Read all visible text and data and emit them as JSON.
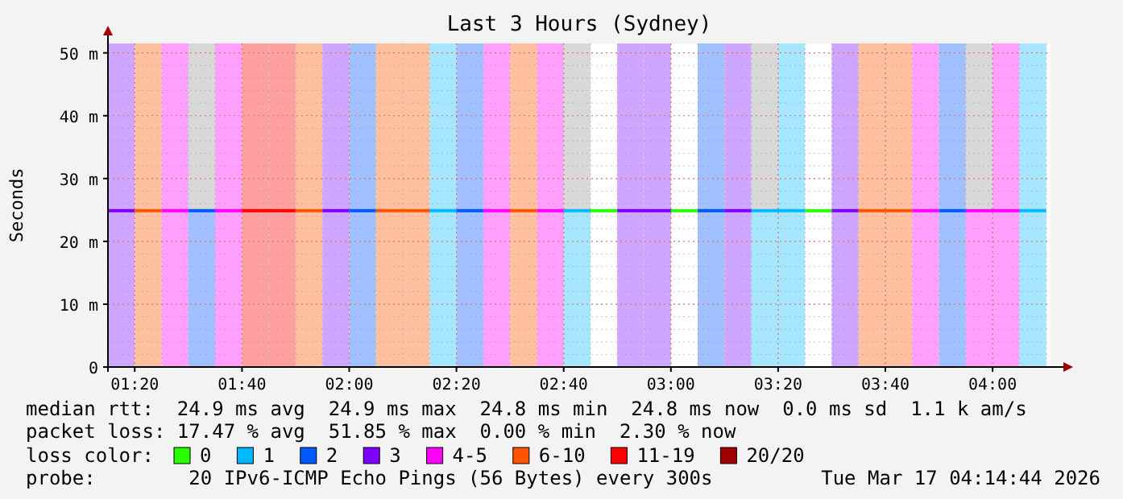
{
  "chart_data": {
    "type": "bar",
    "title": "Last 3 Hours (Sydney)",
    "ylabel": "Seconds",
    "legend_title": "loss color:",
    "legend": "bottom",
    "grid": true,
    "xlim": [
      1.25,
      4.18
    ],
    "ylim": [
      0,
      51.5
    ],
    "xticks": [
      {
        "value": 1.3333,
        "label": "01:20"
      },
      {
        "value": 1.6667,
        "label": "01:40"
      },
      {
        "value": 2,
        "label": "02:00"
      },
      {
        "value": 2.3333,
        "label": "02:20"
      },
      {
        "value": 2.6667,
        "label": "02:40"
      },
      {
        "value": 3,
        "label": "03:00"
      },
      {
        "value": 3.3333,
        "label": "03:20"
      },
      {
        "value": 3.6667,
        "label": "03:40"
      },
      {
        "value": 4,
        "label": "04:00"
      }
    ],
    "yticks": [
      0,
      {
        "value": 10,
        "label": "10 m"
      },
      {
        "value": 20,
        "label": "20 m"
      },
      {
        "value": 30,
        "label": "30 m"
      },
      {
        "value": 40,
        "label": "40 m"
      },
      {
        "value": 50,
        "label": "50 m"
      }
    ],
    "bands": [
      {
        "axis": "x",
        "from": 1.25,
        "to": 1.3333,
        "color": "#cfa6ff"
      },
      {
        "axis": "x",
        "from": 1.3333,
        "to": 1.4167,
        "color": "#ffc0a0"
      },
      {
        "axis": "x",
        "from": 1.4167,
        "to": 1.5,
        "color": "#ffa0ff"
      },
      {
        "axis": "x",
        "from": 1.5,
        "to": 1.5833,
        "color": "#a0c0ff"
      },
      {
        "axis": "x",
        "from": 1.5833,
        "to": 1.6667,
        "color": "#ffa0ff"
      },
      {
        "axis": "x",
        "from": 1.6667,
        "to": 1.75,
        "color": "#ffa0a0"
      },
      {
        "axis": "x",
        "from": 1.75,
        "to": 1.8333,
        "color": "#ffa0a0"
      },
      {
        "axis": "x",
        "from": 1.8333,
        "to": 1.9167,
        "color": "#ffc0a0"
      },
      {
        "axis": "x",
        "from": 1.9167,
        "to": 2,
        "color": "#cfa6ff"
      },
      {
        "axis": "x",
        "from": 2,
        "to": 2.0833,
        "color": "#a0c0ff"
      },
      {
        "axis": "x",
        "from": 2.0833,
        "to": 2.1667,
        "color": "#ffc0a0"
      },
      {
        "axis": "x",
        "from": 2.1667,
        "to": 2.25,
        "color": "#ffc0a0"
      },
      {
        "axis": "x",
        "from": 2.25,
        "to": 2.3333,
        "color": "#a6e6ff"
      },
      {
        "axis": "x",
        "from": 2.3333,
        "to": 2.4167,
        "color": "#a0c0ff"
      },
      {
        "axis": "x",
        "from": 2.4167,
        "to": 2.5,
        "color": "#ffa0ff"
      },
      {
        "axis": "x",
        "from": 2.5,
        "to": 2.5833,
        "color": "#ffc0a0"
      },
      {
        "axis": "x",
        "from": 2.5833,
        "to": 2.6667,
        "color": "#ffa0ff"
      },
      {
        "axis": "x",
        "from": 2.6667,
        "to": 2.75,
        "color": "#a6e6ff"
      },
      {
        "axis": "x",
        "from": 2.8333,
        "to": 2.9167,
        "color": "#cfa6ff"
      },
      {
        "axis": "x",
        "from": 2.9167,
        "to": 3,
        "color": "#cfa6ff"
      },
      {
        "axis": "x",
        "from": 3.0833,
        "to": 3.1667,
        "color": "#a0c0ff"
      },
      {
        "axis": "x",
        "from": 3.1667,
        "to": 3.25,
        "color": "#cfa6ff"
      },
      {
        "axis": "x",
        "from": 3.25,
        "to": 3.3333,
        "color": "#a6e6ff"
      },
      {
        "axis": "x",
        "from": 3.3333,
        "to": 3.4167,
        "color": "#a6e6ff"
      },
      {
        "axis": "x",
        "from": 3.5,
        "to": 3.5833,
        "color": "#cfa6ff"
      },
      {
        "axis": "x",
        "from": 3.5833,
        "to": 3.6667,
        "color": "#ffc0a0"
      },
      {
        "axis": "x",
        "from": 3.6667,
        "to": 3.75,
        "color": "#ffc0a0"
      },
      {
        "axis": "x",
        "from": 3.75,
        "to": 3.8333,
        "color": "#ffa0ff"
      },
      {
        "axis": "x",
        "from": 3.8333,
        "to": 3.9167,
        "color": "#a0c0ff"
      },
      {
        "axis": "x",
        "from": 3.9167,
        "to": 4,
        "color": "#ffa0ff"
      },
      {
        "axis": "x",
        "from": 4,
        "to": 4.0833,
        "color": "#ffa0ff"
      },
      {
        "axis": "x",
        "from": 4.0833,
        "to": 4.1667,
        "color": "#a6e6ff"
      }
    ],
    "series": [
      {
        "name": "0",
        "type": "line",
        "color": "#26ff00",
        "x": [
          2.75,
          2.8333
        ],
        "values": [
          24.9,
          24.9
        ]
      },
      {
        "name": "1",
        "type": "line",
        "color": "#00b8ff",
        "x": [
          2.25,
          2.3333
        ],
        "values": [
          24.9,
          24.9
        ]
      },
      {
        "name": "2",
        "type": "line",
        "color": "#0059ff",
        "x": [
          1.5,
          1.5833
        ],
        "values": [
          24.9,
          24.9
        ]
      },
      {
        "name": "3",
        "type": "line",
        "color": "#7e00ff",
        "x": [
          1.25,
          1.3333
        ],
        "values": [
          24.9,
          24.9
        ]
      },
      {
        "name": "4-5",
        "type": "line",
        "color": "#ff00ff",
        "x": [
          1.4167,
          1.5
        ],
        "values": [
          24.9,
          24.9
        ]
      },
      {
        "name": "6-10",
        "type": "line",
        "color": "#ff5500",
        "x": [
          1.3333,
          1.4167
        ],
        "values": [
          24.9,
          24.9
        ]
      },
      {
        "name": "11-19",
        "type": "line",
        "color": "#ff0000",
        "x": [
          1.6667,
          1.8333
        ],
        "values": [
          24.9,
          24.9
        ]
      },
      {
        "name": "20/20",
        "type": "line",
        "color": "#a10000"
      },
      {
        "type": "line",
        "color": "#26ff00",
        "x": [
          3,
          3.0833
        ],
        "values": [
          24.9,
          24.9
        ]
      },
      {
        "type": "line",
        "color": "#26ff00",
        "x": [
          3.4167,
          3.5
        ],
        "values": [
          24.9,
          24.9
        ]
      },
      {
        "type": "line",
        "color": "#00b8ff",
        "x": [
          2.6667,
          2.75
        ],
        "values": [
          24.9,
          24.9
        ]
      },
      {
        "type": "line",
        "color": "#00b8ff",
        "x": [
          3.25,
          3.4167
        ],
        "values": [
          24.9,
          24.9
        ]
      },
      {
        "type": "line",
        "color": "#00b8ff",
        "x": [
          4.0833,
          4.1667
        ],
        "values": [
          24.9,
          24.9
        ]
      },
      {
        "type": "line",
        "color": "#0059ff",
        "x": [
          2,
          2.0833
        ],
        "values": [
          24.9,
          24.9
        ]
      },
      {
        "type": "line",
        "color": "#0059ff",
        "x": [
          2.3333,
          2.4167
        ],
        "values": [
          24.9,
          24.9
        ]
      },
      {
        "type": "line",
        "color": "#0059ff",
        "x": [
          3.0833,
          3.1667
        ],
        "values": [
          24.9,
          24.9
        ]
      },
      {
        "type": "line",
        "color": "#0059ff",
        "x": [
          3.8333,
          3.9167
        ],
        "values": [
          24.9,
          24.9
        ]
      },
      {
        "type": "line",
        "color": "#7e00ff",
        "x": [
          1.9167,
          2
        ],
        "values": [
          24.9,
          24.9
        ]
      },
      {
        "type": "line",
        "color": "#7e00ff",
        "x": [
          2.8333,
          3
        ],
        "values": [
          24.9,
          24.9
        ]
      },
      {
        "type": "line",
        "color": "#7e00ff",
        "x": [
          3.1667,
          3.25
        ],
        "values": [
          24.9,
          24.9
        ]
      },
      {
        "type": "line",
        "color": "#7e00ff",
        "x": [
          3.5,
          3.5833
        ],
        "values": [
          24.9,
          24.9
        ]
      },
      {
        "type": "line",
        "color": "#ff00ff",
        "x": [
          1.5833,
          1.6667
        ],
        "values": [
          24.9,
          24.9
        ]
      },
      {
        "type": "line",
        "color": "#ff00ff",
        "x": [
          2.4167,
          2.5
        ],
        "values": [
          24.9,
          24.9
        ]
      },
      {
        "type": "line",
        "color": "#ff00ff",
        "x": [
          2.5833,
          2.6667
        ],
        "values": [
          24.9,
          24.9
        ]
      },
      {
        "type": "line",
        "color": "#ff00ff",
        "x": [
          3.75,
          3.8333
        ],
        "values": [
          24.9,
          24.9
        ]
      },
      {
        "type": "line",
        "color": "#ff00ff",
        "x": [
          3.9167,
          4.0833
        ],
        "values": [
          24.9,
          24.9
        ]
      },
      {
        "type": "line",
        "color": "#ff5500",
        "x": [
          1.8333,
          1.9167
        ],
        "values": [
          24.9,
          24.9
        ]
      },
      {
        "type": "line",
        "color": "#ff5500",
        "x": [
          2.0833,
          2.25
        ],
        "values": [
          24.9,
          24.9
        ]
      },
      {
        "type": "line",
        "color": "#ff5500",
        "x": [
          2.5,
          2.5833
        ],
        "values": [
          24.9,
          24.9
        ]
      },
      {
        "type": "line",
        "color": "#ff5500",
        "x": [
          3.5833,
          3.75
        ],
        "values": [
          24.9,
          24.9
        ]
      },
      {
        "color": "#d8d8d8",
        "x": [
          1.5417,
          2.7083,
          3.2917,
          3.9583
        ],
        "base": [
          24.9,
          24.9,
          24.9,
          24.9
        ],
        "values": [
          26.6,
          26.6,
          26.6,
          26.6
        ]
      }
    ],
    "annotations": [
      "median rtt:  24.9 ms avg  24.9 ms max  24.8 ms min  24.8 ms now  0.0 ms sd  1.1 k am/s",
      "packet loss: 17.47 % avg  51.85 % max  0.00 % min  2.30 % now",
      "probe:        20 IPv6-ICMP Echo Pings (56 Bytes) every 300s",
      "Tue Mar 17 04:14:44 2026"
    ]
  }
}
